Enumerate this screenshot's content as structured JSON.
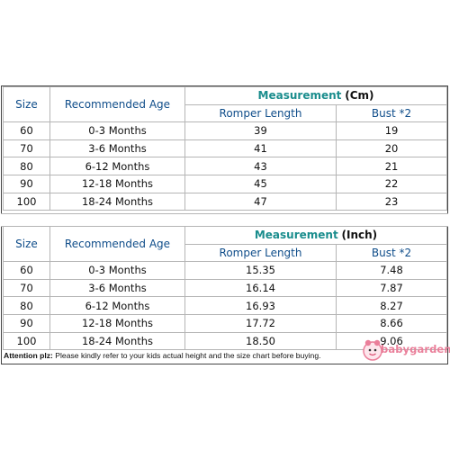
{
  "table_cm": {
    "size_header": "Size",
    "age_header": "Recommended Age",
    "measurement_label": "Measurement",
    "unit_label": "(Cm)",
    "romper_header": "Romper Length",
    "bust_header": "Bust *2",
    "rows": [
      {
        "size": "60",
        "age": "0-3 Months",
        "romper": "39",
        "bust": "19"
      },
      {
        "size": "70",
        "age": "3-6 Months",
        "romper": "41",
        "bust": "20"
      },
      {
        "size": "80",
        "age": "6-12 Months",
        "romper": "43",
        "bust": "21"
      },
      {
        "size": "90",
        "age": "12-18 Months",
        "romper": "45",
        "bust": "22"
      },
      {
        "size": "100",
        "age": "18-24 Months",
        "romper": "47",
        "bust": "23"
      }
    ]
  },
  "table_inch": {
    "size_header": "Size",
    "age_header": "Recommended Age",
    "measurement_label": "Measurement",
    "unit_label": "(Inch)",
    "romper_header": "Romper Length",
    "bust_header": "Bust *2",
    "rows": [
      {
        "size": "60",
        "age": "0-3 Months",
        "romper": "15.35",
        "bust": "7.48"
      },
      {
        "size": "70",
        "age": "3-6 Months",
        "romper": "16.14",
        "bust": "7.87"
      },
      {
        "size": "80",
        "age": "6-12 Months",
        "romper": "16.93",
        "bust": "8.27"
      },
      {
        "size": "90",
        "age": "12-18 Months",
        "romper": "17.72",
        "bust": "8.66"
      },
      {
        "size": "100",
        "age": "18-24 Months",
        "romper": "18.50",
        "bust": "9.06"
      }
    ]
  },
  "note": {
    "label": "Attention plz:",
    "text": " Please kindly refer to your kids actual height and the size chart before buying."
  },
  "logo": {
    "text": "babygarden",
    "color": "#ea7f9a"
  },
  "colors": {
    "header_blue": "#0f4d8a",
    "measurement_teal": "#1a8d8d"
  }
}
